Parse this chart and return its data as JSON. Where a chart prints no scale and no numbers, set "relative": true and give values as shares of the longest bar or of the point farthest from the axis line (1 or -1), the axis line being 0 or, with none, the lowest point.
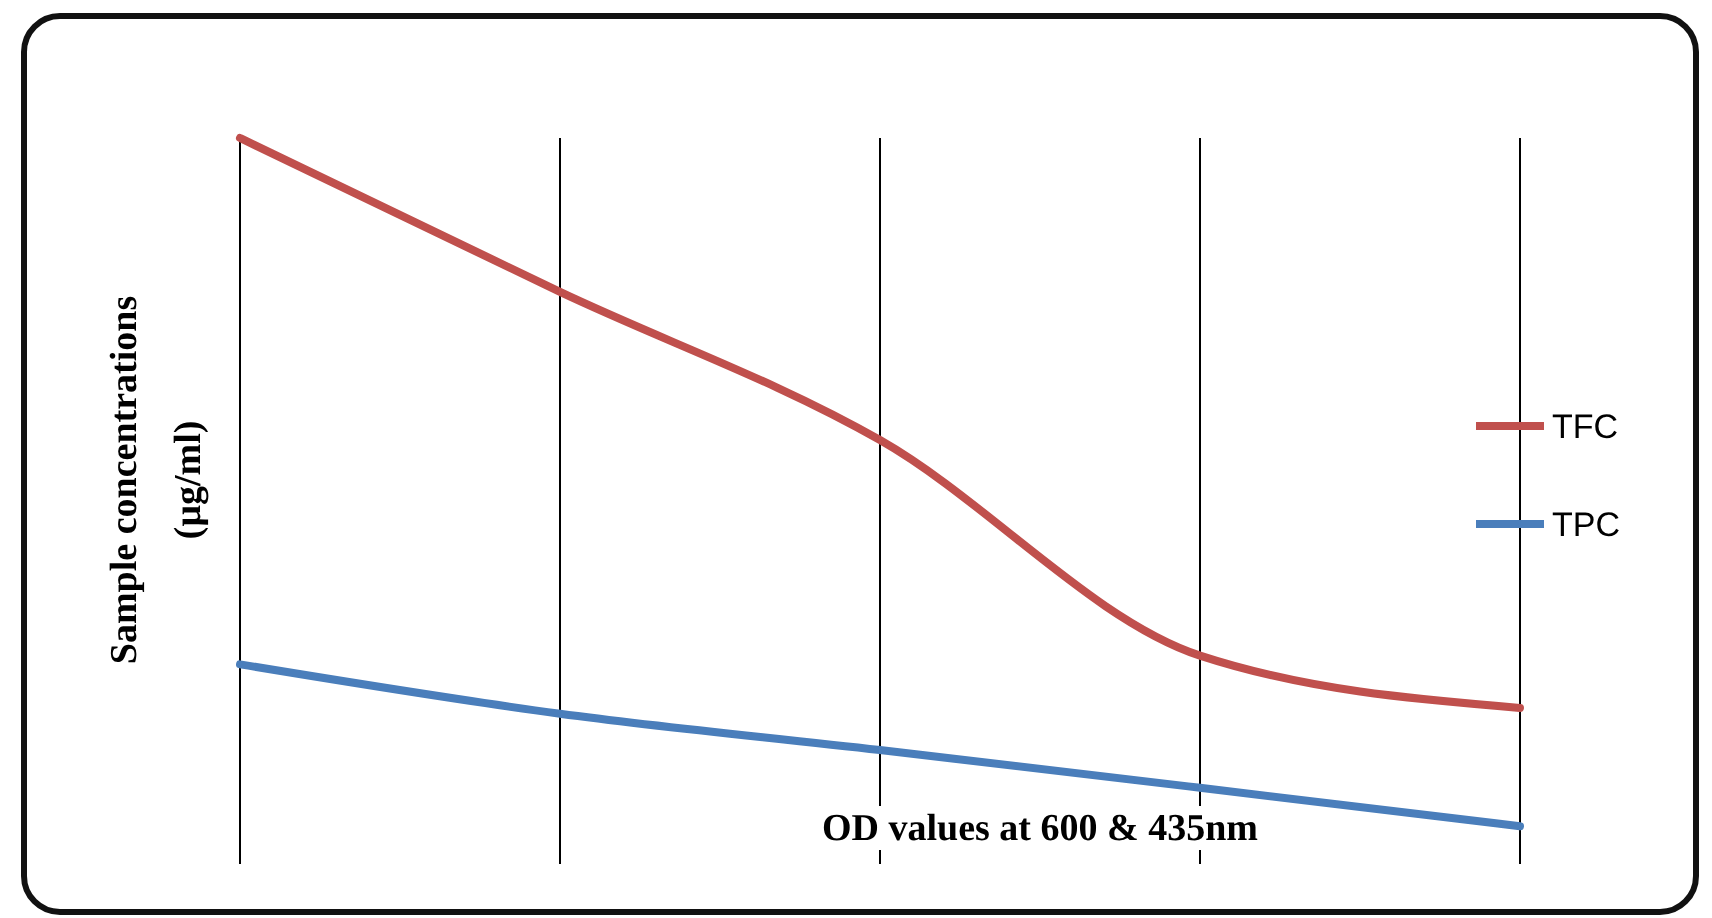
{
  "chart_data": {
    "type": "line",
    "relative": true,
    "xlabel": "OD values at 600 & 435nm",
    "ylabel": "Sample concentrations (µg/ml)",
    "categories": [
      null,
      null,
      null,
      null,
      null
    ],
    "grid": "x",
    "legend": "right",
    "series": [
      {
        "name": "TFC",
        "color": "#c0504d",
        "values": [
          1,
          0.788,
          0.584,
          0.287,
          0.215
        ]
      },
      {
        "name": "TPC",
        "color": "#4a7ebb",
        "values": [
          0.275,
          0.207,
          0.157,
          0.105,
          0.052
        ]
      }
    ]
  }
}
